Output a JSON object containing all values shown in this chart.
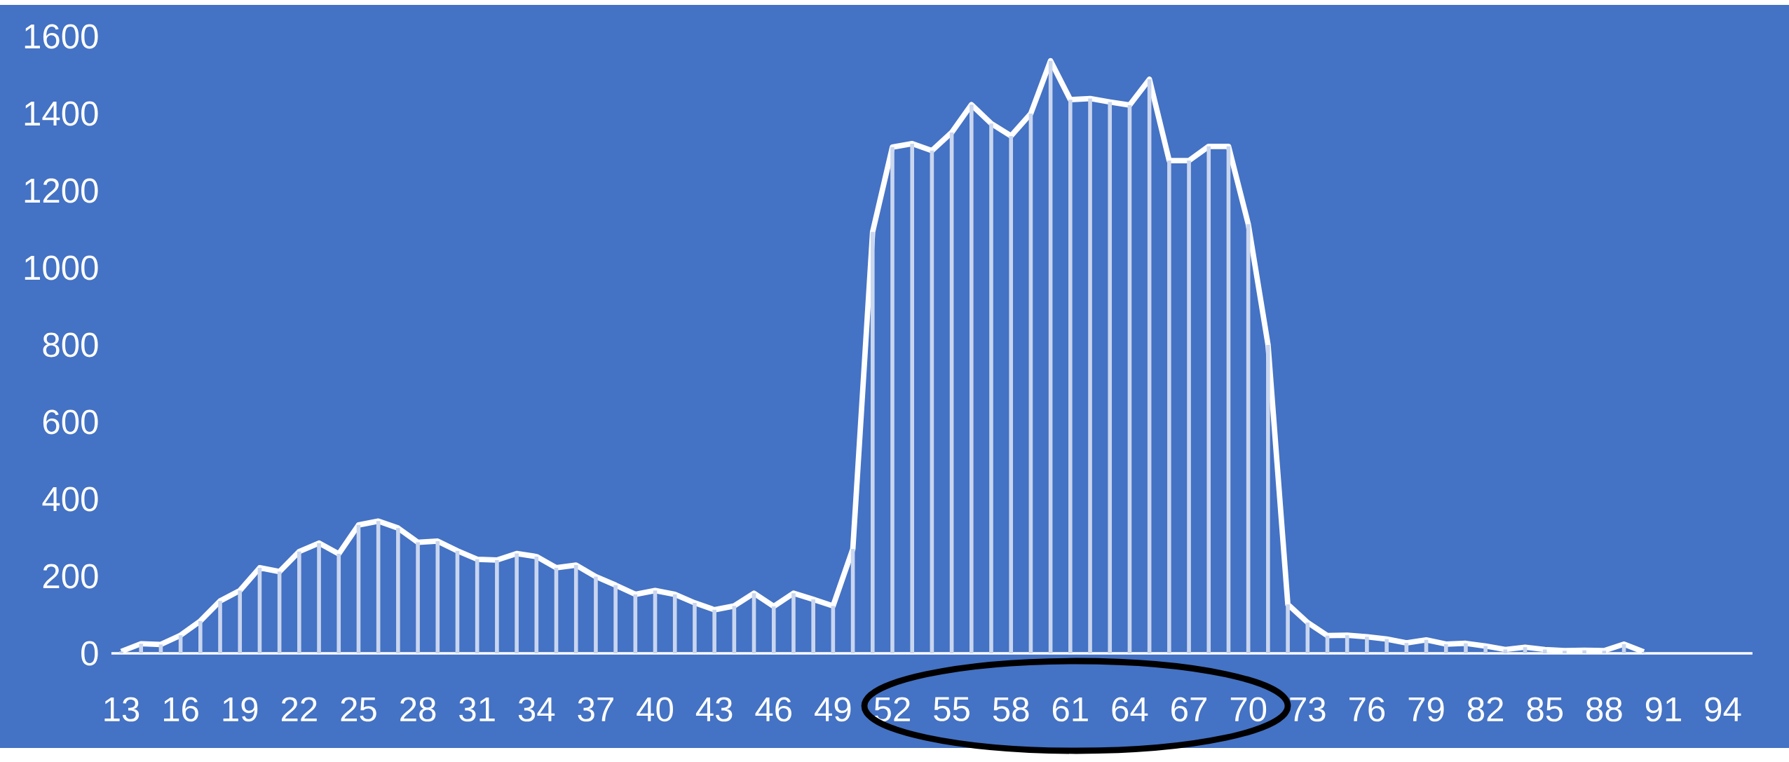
{
  "chart_data": {
    "type": "line",
    "categories": [
      "13",
      null,
      null,
      "16",
      null,
      null,
      "19",
      null,
      null,
      "22",
      null,
      null,
      "25",
      null,
      null,
      "28",
      null,
      null,
      "31",
      null,
      null,
      "34",
      null,
      null,
      "37",
      null,
      null,
      "40",
      null,
      null,
      "43",
      null,
      null,
      "46",
      null,
      null,
      "49",
      null,
      null,
      "52",
      null,
      null,
      "55",
      null,
      null,
      "58",
      null,
      null,
      "61",
      null,
      null,
      "64",
      null,
      null,
      "67",
      null,
      null,
      "70",
      null,
      null,
      "73",
      null,
      null,
      "76",
      null,
      null,
      "79",
      null,
      null,
      "82",
      null,
      null,
      "85",
      null,
      null,
      "88",
      null,
      null,
      "91",
      null,
      null,
      "94",
      null
    ],
    "series": [
      {
        "type": "bar",
        "color": "#c9d6ef",
        "values": [
          5,
          25,
          23,
          47,
          84,
          136,
          163,
          222,
          212,
          264,
          286,
          258,
          333,
          343,
          325,
          288,
          291,
          266,
          244,
          242,
          259,
          251,
          222,
          229,
          199,
          177,
          153,
          163,
          153,
          131,
          113,
          123,
          156,
          122,
          156,
          140,
          123,
          271,
          1093,
          1313,
          1322,
          1304,
          1351,
          1423,
          1374,
          1342,
          1400,
          1537,
          1436,
          1439,
          1430,
          1422,
          1489,
          1278,
          1278,
          1315,
          1315,
          1113,
          800,
          127,
          80,
          46,
          47,
          43,
          37,
          27,
          35,
          24,
          26,
          19,
          10,
          16,
          10,
          7,
          8,
          7,
          24,
          4,
          null,
          null,
          null,
          null,
          null
        ]
      },
      {
        "color": "#ffffff",
        "values": [
          5,
          25,
          23,
          47,
          84,
          136,
          163,
          222,
          212,
          264,
          286,
          258,
          333,
          343,
          325,
          288,
          291,
          266,
          244,
          242,
          259,
          251,
          222,
          229,
          199,
          177,
          153,
          163,
          153,
          131,
          113,
          123,
          156,
          122,
          156,
          140,
          123,
          271,
          1093,
          1313,
          1322,
          1304,
          1351,
          1423,
          1374,
          1342,
          1400,
          1537,
          1436,
          1439,
          1430,
          1422,
          1489,
          1278,
          1278,
          1315,
          1315,
          1113,
          800,
          127,
          80,
          46,
          47,
          43,
          37,
          27,
          35,
          24,
          26,
          19,
          10,
          16,
          10,
          7,
          8,
          7,
          24,
          4,
          null,
          null,
          null,
          null,
          null
        ]
      }
    ],
    "ylim": [
      0,
      1600
    ],
    "yticks": [
      0,
      200,
      400,
      600,
      800,
      1000,
      1200,
      1400,
      1600
    ]
  }
}
